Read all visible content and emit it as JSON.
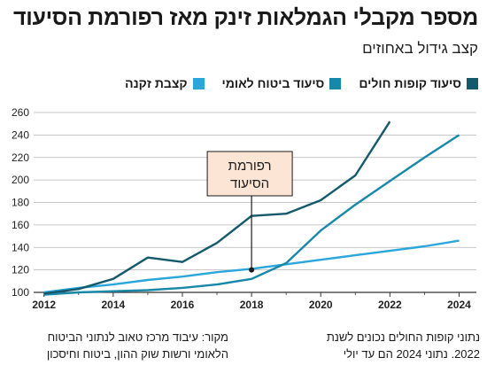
{
  "chart_data": {
    "type": "line",
    "title": "מספר מקבלי הגמלאות זינק מאז רפורמת הסיעוד",
    "subtitle": "קצב גידול באחוזים",
    "xlabel": "",
    "ylabel": "",
    "xlim": [
      2011.7,
      2024.5
    ],
    "ylim": [
      100,
      260
    ],
    "x_ticks": [
      2012,
      2014,
      2016,
      2018,
      2020,
      2022,
      2024
    ],
    "y_ticks": [
      100,
      120,
      140,
      160,
      180,
      200,
      220,
      240,
      260
    ],
    "grid": true,
    "legend_position": "top",
    "series": [
      {
        "name": "סיעוד קופות חולים",
        "color": "#145a6b",
        "x": [
          2012,
          2013,
          2014,
          2015,
          2016,
          2017,
          2018,
          2019,
          2020,
          2021,
          2022
        ],
        "values": [
          99,
          103,
          112,
          131,
          127,
          144,
          168,
          170,
          182,
          204,
          252
        ]
      },
      {
        "name": "סיעוד ביטוח לאומי",
        "color": "#1888a8",
        "x": [
          2012,
          2013,
          2014,
          2015,
          2016,
          2017,
          2018,
          2019,
          2020,
          2021,
          2022,
          2023,
          2024
        ],
        "values": [
          98,
          100,
          101,
          102,
          104,
          107,
          112,
          126,
          155,
          178,
          199,
          220,
          240
        ]
      },
      {
        "name": "קצבת זקנה",
        "color": "#2aa6da",
        "x": [
          2012,
          2013,
          2014,
          2015,
          2016,
          2017,
          2018,
          2019,
          2020,
          2021,
          2022,
          2023,
          2024
        ],
        "values": [
          100,
          104,
          107,
          111,
          114,
          118,
          121,
          125,
          129,
          133,
          137,
          141,
          146
        ]
      }
    ],
    "annotation": {
      "text_line1": "רפורמת",
      "text_line2": "הסיעוד",
      "x": 2018,
      "y": 120,
      "box_fill": "#fce5d4",
      "box_stroke": "#1a1a1a"
    }
  },
  "footer": {
    "source_line1": "מקור: עיבוד מרכז טאוב לנתוני הביטוח",
    "source_line2": "הלאומי ורשות שוק ההון, ביטוח וחיסכון",
    "note_line1": "נתוני קופות החולים נכונים לשנת",
    "note_line2": "2022. נתוני 2024 הם עד יולי"
  }
}
